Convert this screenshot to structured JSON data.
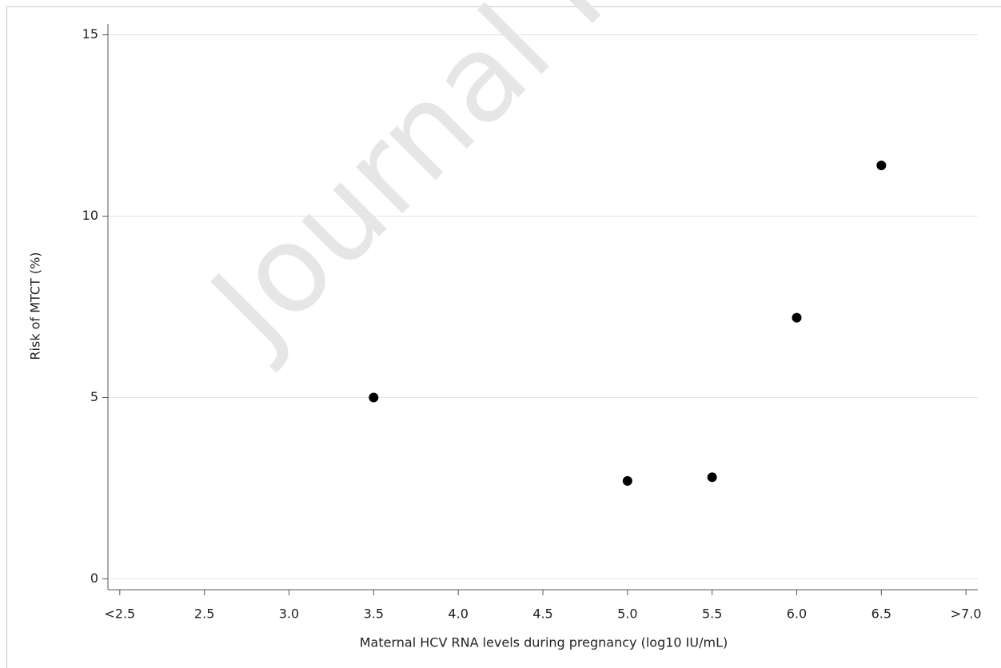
{
  "chart_data": {
    "type": "scatter",
    "watermark": "Journal Pre-proof",
    "x_label": "Maternal HCV RNA levels during pregnancy (log10 IU/mL)",
    "y_label": "Risk of MTCT (%)",
    "x": [
      3.5,
      5.0,
      5.5,
      6.0,
      6.5
    ],
    "series": [
      {
        "color": "#000000",
        "values": [
          5.0,
          2.7,
          2.8,
          7.2,
          11.4
        ]
      }
    ],
    "xlim": [
      1.93,
      7.07
    ],
    "ylim": [
      -0.3,
      15.3
    ],
    "xticks": [
      {
        "value": 2.0,
        "label": "<2.5"
      },
      2.5,
      {
        "value": 3,
        "label": "3.0"
      },
      3.5,
      {
        "value": 4,
        "label": "4.0"
      },
      4.5,
      {
        "value": 5,
        "label": "5.0"
      },
      5.5,
      {
        "value": 6,
        "label": "6.0"
      },
      6.5,
      {
        "value": 7,
        "label": ">7.0"
      }
    ],
    "yticks": [
      0,
      5,
      10,
      15
    ],
    "grid": true
  }
}
